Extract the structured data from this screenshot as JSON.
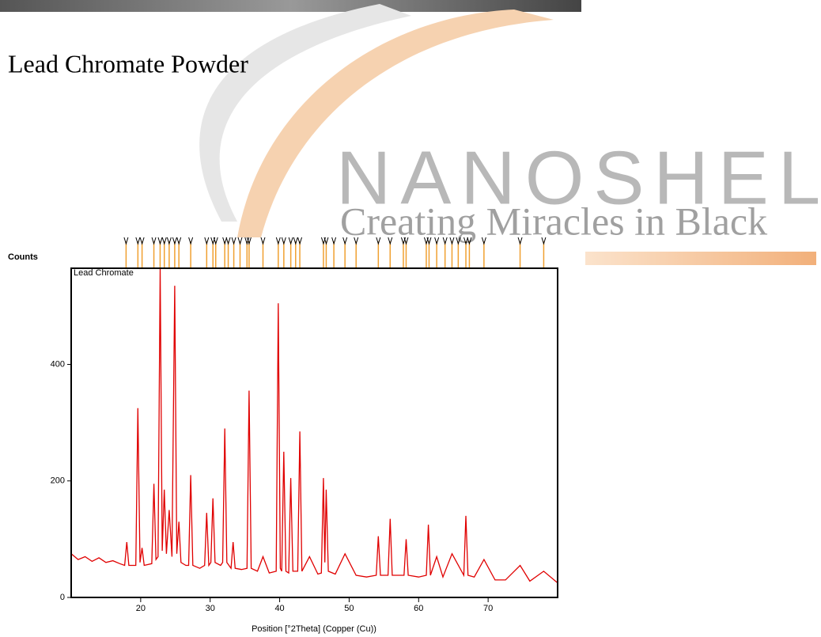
{
  "header": {
    "title": "Lead Chromate Powder"
  },
  "watermark": {
    "brand": "NANOSHEL",
    "tagline": "Creating Miracles in Black"
  },
  "chart_data": {
    "type": "line",
    "legend_label": "Lead Chromate",
    "ylabel": "Counts",
    "xlabel": "Position [°2Theta] (Copper (Cu))",
    "color": "#e00000",
    "reference_color": "#f0a030",
    "xlim": [
      10,
      80
    ],
    "ylim": [
      0,
      565
    ],
    "xticks": [
      20,
      30,
      40,
      50,
      60,
      70
    ],
    "yticks": [
      0,
      200,
      400
    ],
    "x": [
      10,
      11,
      12,
      13,
      14,
      15,
      16,
      17,
      17.7,
      18.0,
      18.3,
      19.3,
      19.6,
      19.9,
      20.2,
      20.5,
      21.6,
      21.9,
      22.2,
      22.5,
      22.8,
      23.1,
      23.4,
      23.7,
      24.1,
      24.5,
      24.9,
      25.2,
      25.5,
      25.8,
      26.5,
      26.9,
      27.2,
      27.5,
      28.5,
      29.2,
      29.5,
      29.8,
      30.1,
      30.4,
      30.7,
      31.5,
      31.8,
      32.1,
      32.4,
      33.0,
      33.3,
      33.6,
      34.5,
      35.3,
      35.6,
      35.9,
      36.8,
      37.6,
      38.5,
      39.5,
      39.8,
      40.1,
      40.3,
      40.6,
      40.9,
      41.3,
      41.6,
      41.9,
      42.6,
      42.9,
      43.2,
      44.3,
      45.5,
      46.0,
      46.3,
      46.5,
      46.7,
      47.0,
      48.0,
      49.4,
      51,
      52.5,
      53.9,
      54.2,
      54.5,
      55.6,
      55.9,
      56.2,
      57.9,
      58.2,
      58.5,
      60,
      61.1,
      61.4,
      61.7,
      62.6,
      63.5,
      64.8,
      66.5,
      66.8,
      67.1,
      68,
      69.4,
      71,
      72.5,
      74.6,
      76,
      78,
      80
    ],
    "values": [
      75,
      65,
      70,
      62,
      68,
      60,
      63,
      58,
      55,
      95,
      55,
      55,
      325,
      60,
      85,
      55,
      58,
      195,
      65,
      70,
      565,
      80,
      185,
      75,
      150,
      70,
      535,
      75,
      130,
      60,
      55,
      55,
      210,
      55,
      50,
      55,
      145,
      55,
      60,
      170,
      60,
      55,
      60,
      290,
      60,
      50,
      95,
      50,
      48,
      50,
      355,
      50,
      45,
      70,
      42,
      45,
      505,
      50,
      45,
      250,
      45,
      42,
      205,
      45,
      45,
      285,
      45,
      70,
      40,
      42,
      205,
      60,
      185,
      45,
      40,
      75,
      38,
      35,
      38,
      105,
      38,
      38,
      135,
      38,
      38,
      100,
      38,
      35,
      38,
      125,
      38,
      70,
      35,
      75,
      38,
      140,
      38,
      35,
      65,
      30,
      30,
      55,
      28,
      45,
      25
    ],
    "reference_positions": [
      17.9,
      19.6,
      20.2,
      21.9,
      22.8,
      23.4,
      24.1,
      24.9,
      25.5,
      27.2,
      29.5,
      30.4,
      30.8,
      32.1,
      32.6,
      33.4,
      34.3,
      35.3,
      35.6,
      37.6,
      39.8,
      40.6,
      41.6,
      42.3,
      42.9,
      46.3,
      46.7,
      47.8,
      49.4,
      51,
      54.2,
      55.9,
      57.8,
      58.2,
      61.1,
      61.5,
      62.6,
      63.8,
      64.8,
      65.7,
      66.8,
      67.3,
      69.4,
      74.6,
      78
    ]
  }
}
